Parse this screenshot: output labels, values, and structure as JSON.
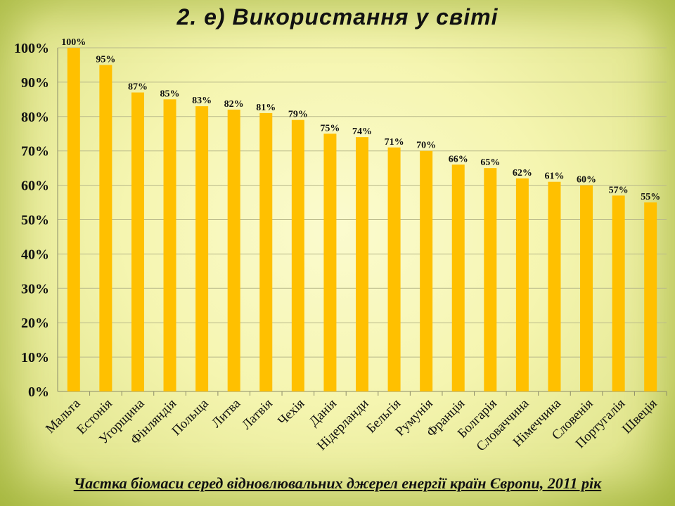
{
  "slide": {
    "title": "2. е) Використання у світі",
    "caption": "Частка біомаси серед відновлювальних джерел енергії країн Європи, 2011 рік"
  },
  "colors": {
    "bar": "#FFC000",
    "grid": "#b9b98a",
    "axis": "#8c8c6a",
    "text": "#111111"
  },
  "chart_data": {
    "type": "bar",
    "categories": [
      "Мальта",
      "Естонія",
      "Угорщина",
      "Фінляндія",
      "Польща",
      "Литва",
      "Латвія",
      "Чехія",
      "Данія",
      "Нідерланди",
      "Бельгія",
      "Румунія",
      "Франція",
      "Болгарія",
      "Словаччина",
      "Німеччина",
      "Словенія",
      "Португалія",
      "Швеція"
    ],
    "values": [
      100,
      95,
      87,
      85,
      83,
      82,
      81,
      79,
      75,
      74,
      71,
      70,
      66,
      65,
      62,
      61,
      60,
      57,
      55
    ],
    "value_labels": [
      "100%",
      "95%",
      "87%",
      "85%",
      "83%",
      "82%",
      "81%",
      "79%",
      "75%",
      "74%",
      "71%",
      "70%",
      "66%",
      "65%",
      "62%",
      "61%",
      "60%",
      "57%",
      "55%"
    ],
    "y_ticks": [
      "0%",
      "10%",
      "20%",
      "30%",
      "40%",
      "50%",
      "60%",
      "70%",
      "80%",
      "90%",
      "100%"
    ],
    "ylim": [
      0,
      100
    ],
    "unit": "%",
    "grid": true,
    "legend": "none",
    "title": "",
    "xlabel": "",
    "ylabel": ""
  }
}
